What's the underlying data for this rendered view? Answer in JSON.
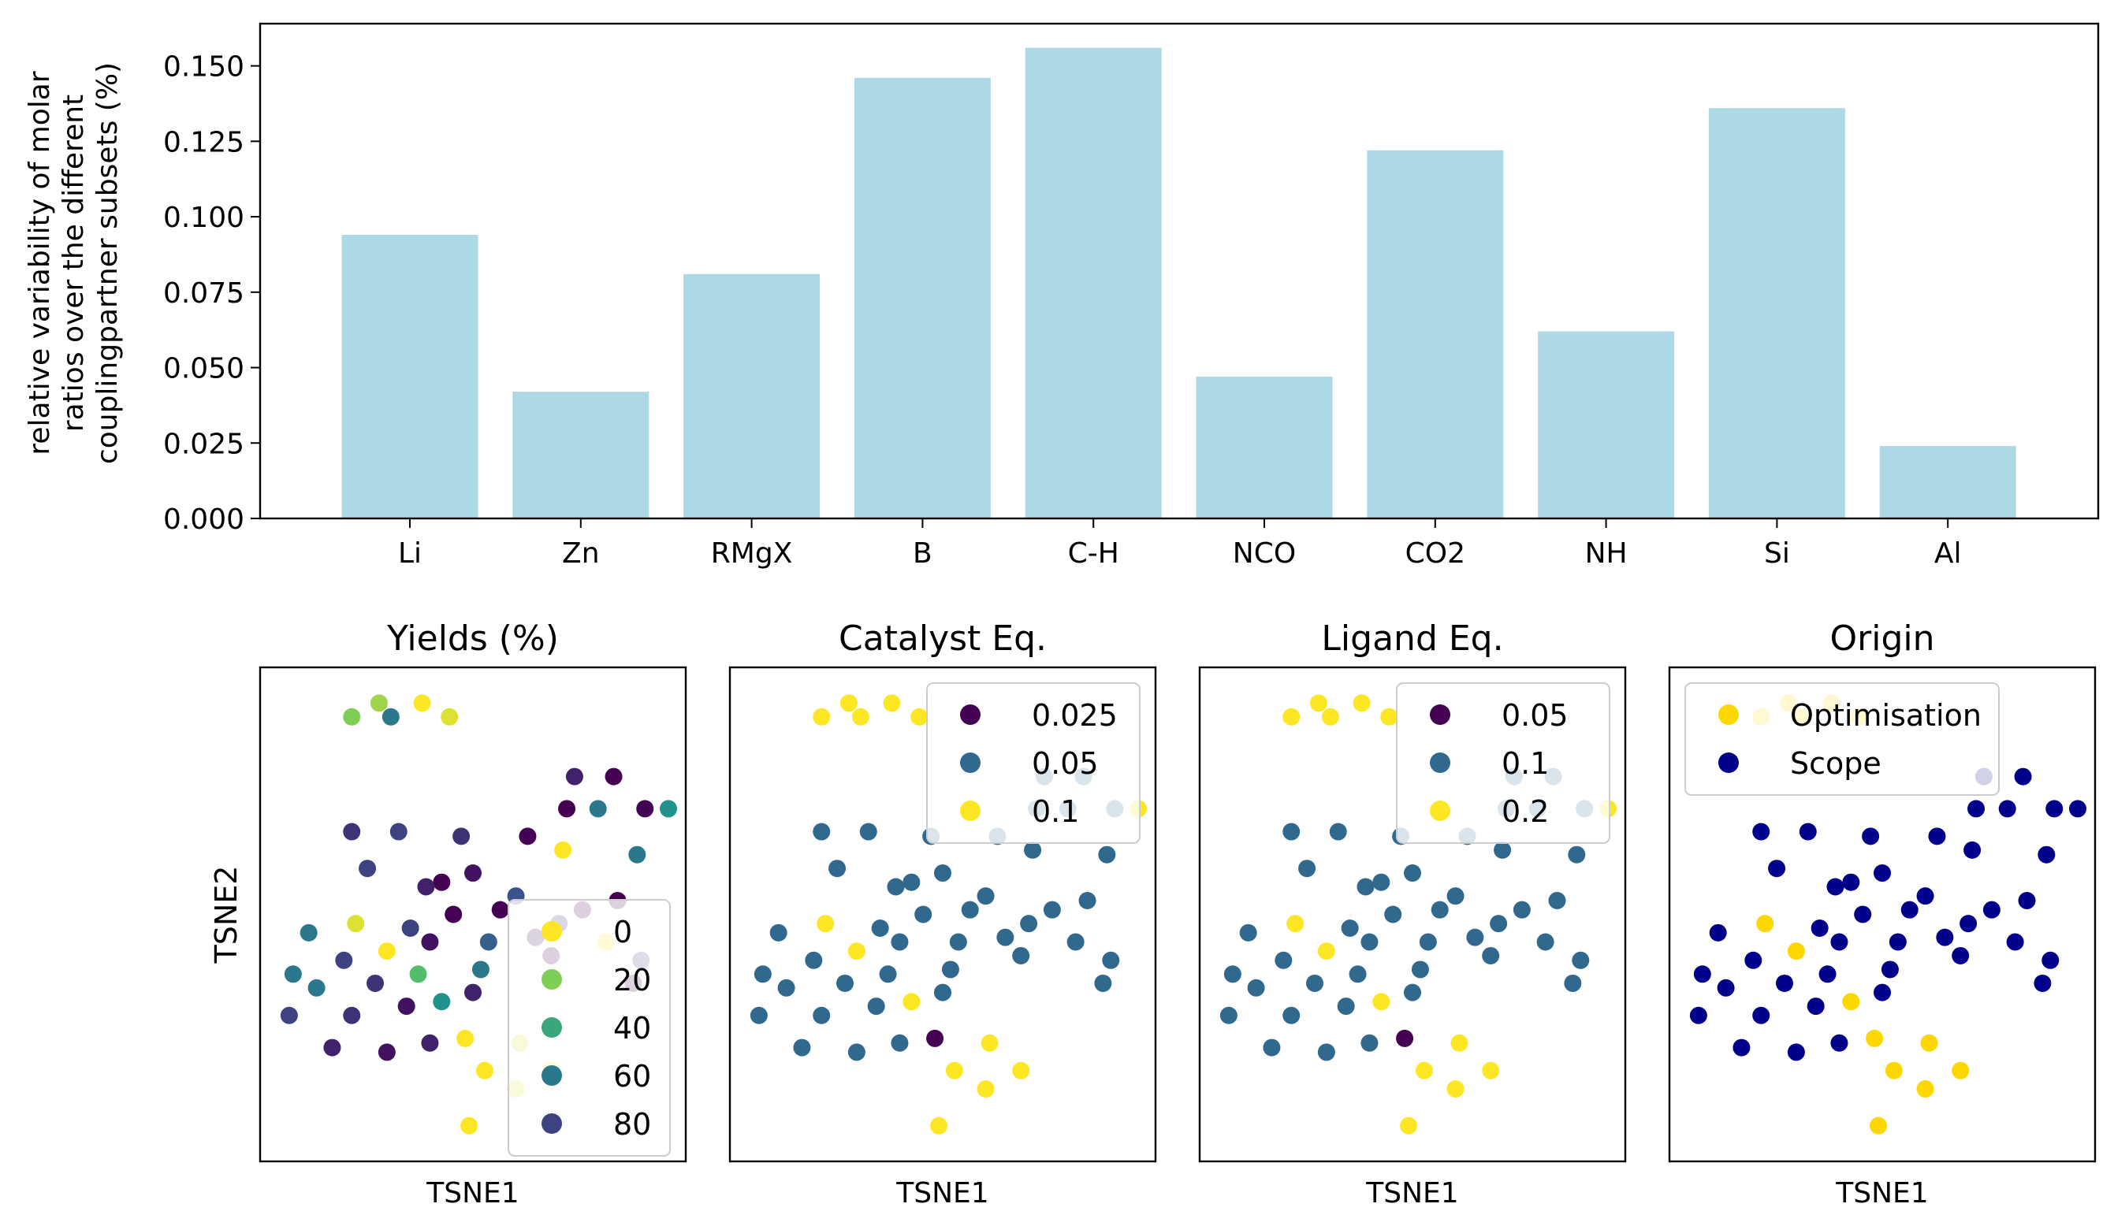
{
  "chart_data": [
    {
      "type": "bar",
      "title": "",
      "xlabel": "",
      "ylabel_lines": [
        "relative variability of molar",
        "ratios over the different",
        "couplingpartner subsets (%)"
      ],
      "categories": [
        "Li",
        "Zn",
        "RMgX",
        "B",
        "C-H",
        "NCO",
        "CO2",
        "NH",
        "Si",
        "Al"
      ],
      "values": [
        0.094,
        0.042,
        0.081,
        0.146,
        0.156,
        0.047,
        0.122,
        0.062,
        0.136,
        0.024
      ],
      "ylim": [
        0,
        0.164
      ],
      "yticks": [
        0.0,
        0.025,
        0.05,
        0.075,
        0.1,
        0.125,
        0.15
      ],
      "ytick_labels": [
        "0.000",
        "0.025",
        "0.050",
        "0.075",
        "0.100",
        "0.125",
        "0.150"
      ],
      "bar_color": "#add8e6",
      "grid": false
    },
    {
      "type": "scatter",
      "shared": {
        "xlabel": "TSNE1",
        "ylabel": "TSNE2",
        "xlim": [
          0,
          10
        ],
        "ylim": [
          0,
          10
        ],
        "points": [
          [
            2.6,
            9.6
          ],
          [
            3.7,
            9.6
          ],
          [
            1.9,
            9.3
          ],
          [
            2.9,
            9.3
          ],
          [
            4.4,
            9.3
          ],
          [
            7.6,
            8.0
          ],
          [
            8.6,
            8.0
          ],
          [
            9.4,
            7.3
          ],
          [
            7.4,
            7.3
          ],
          [
            8.2,
            7.3
          ],
          [
            10.0,
            7.3
          ],
          [
            1.9,
            6.8
          ],
          [
            3.1,
            6.8
          ],
          [
            4.7,
            6.7
          ],
          [
            6.4,
            6.7
          ],
          [
            9.2,
            6.3
          ],
          [
            7.3,
            6.4
          ],
          [
            2.3,
            6.0
          ],
          [
            5.0,
            5.9
          ],
          [
            4.2,
            5.7
          ],
          [
            3.8,
            5.6
          ],
          [
            6.1,
            5.4
          ],
          [
            8.7,
            5.3
          ],
          [
            7.8,
            5.1
          ],
          [
            5.7,
            5.1
          ],
          [
            4.5,
            5.0
          ],
          [
            7.2,
            4.8
          ],
          [
            2.0,
            4.8
          ],
          [
            3.4,
            4.7
          ],
          [
            6.6,
            4.5
          ],
          [
            0.8,
            4.6
          ],
          [
            3.9,
            4.4
          ],
          [
            5.4,
            4.4
          ],
          [
            8.4,
            4.4
          ],
          [
            7.0,
            4.1
          ],
          [
            2.8,
            4.2
          ],
          [
            1.7,
            4.0
          ],
          [
            5.2,
            3.8
          ],
          [
            9.3,
            4.0
          ],
          [
            0.4,
            3.7
          ],
          [
            3.6,
            3.7
          ],
          [
            2.5,
            3.5
          ],
          [
            1.0,
            3.4
          ],
          [
            5.0,
            3.3
          ],
          [
            9.1,
            3.5
          ],
          [
            3.3,
            3.0
          ],
          [
            0.3,
            2.8
          ],
          [
            1.9,
            2.8
          ],
          [
            4.2,
            3.1
          ],
          [
            1.4,
            2.1
          ],
          [
            4.8,
            2.3
          ],
          [
            2.8,
            2.0
          ],
          [
            6.2,
            2.2
          ],
          [
            3.9,
            2.2
          ],
          [
            5.3,
            1.6
          ],
          [
            7.0,
            1.6
          ],
          [
            6.1,
            1.2
          ],
          [
            4.9,
            0.4
          ]
        ],
        "catalyst_levels": [
          2,
          2,
          2,
          2,
          2,
          1,
          1,
          1,
          1,
          1,
          2,
          1,
          1,
          1,
          1,
          1,
          1,
          1,
          1,
          1,
          1,
          1,
          1,
          1,
          1,
          1,
          1,
          2,
          1,
          1,
          1,
          1,
          1,
          1,
          1,
          2,
          1,
          1,
          1,
          1,
          1,
          1,
          1,
          1,
          1,
          1,
          1,
          1,
          2,
          1,
          0,
          1,
          2,
          1,
          2,
          2,
          2,
          2
        ],
        "origin_levels": [
          0,
          0,
          0,
          0,
          0,
          1,
          1,
          1,
          1,
          1,
          1,
          1,
          1,
          1,
          1,
          1,
          1,
          1,
          1,
          1,
          1,
          1,
          1,
          1,
          1,
          1,
          1,
          0,
          1,
          1,
          1,
          1,
          1,
          1,
          1,
          0,
          1,
          1,
          1,
          1,
          1,
          1,
          1,
          1,
          1,
          1,
          1,
          1,
          0,
          1,
          0,
          1,
          0,
          1,
          0,
          0,
          0,
          0
        ],
        "yields": [
          15,
          0,
          20,
          60,
          5,
          90,
          100,
          100,
          100,
          60,
          50,
          85,
          80,
          85,
          100,
          60,
          0,
          80,
          95,
          100,
          90,
          75,
          100,
          100,
          100,
          100,
          90,
          5,
          80,
          95,
          60,
          95,
          70,
          0,
          100,
          0,
          80,
          60,
          80,
          60,
          30,
          85,
          60,
          90,
          100,
          95,
          80,
          85,
          50,
          90,
          0,
          95,
          5,
          90,
          0,
          0,
          5,
          0
        ]
      },
      "panels": [
        {
          "title": "Yields (%)",
          "legend": {
            "entries": [
              {
                "label": "0",
                "value": 0
              },
              {
                "label": "20",
                "value": 20
              },
              {
                "label": "40",
                "value": 40
              },
              {
                "label": "60",
                "value": 60
              },
              {
                "label": "80",
                "value": 80
              }
            ]
          }
        },
        {
          "title": "Catalyst Eq.",
          "legend": {
            "entries": [
              {
                "label": "0.025",
                "color": "#440154"
              },
              {
                "label": "0.05",
                "color": "#31688e"
              },
              {
                "label": "0.1",
                "color": "#fde725"
              }
            ]
          }
        },
        {
          "title": "Ligand Eq.",
          "legend": {
            "entries": [
              {
                "label": "0.05",
                "color": "#440154"
              },
              {
                "label": "0.1",
                "color": "#31688e"
              },
              {
                "label": "0.2",
                "color": "#fde725"
              }
            ]
          }
        },
        {
          "title": "Origin",
          "legend": {
            "entries": [
              {
                "label": "Optimisation",
                "color": "#ffd700"
              },
              {
                "label": "Scope",
                "color": "#00008b"
              }
            ]
          }
        }
      ]
    }
  ]
}
